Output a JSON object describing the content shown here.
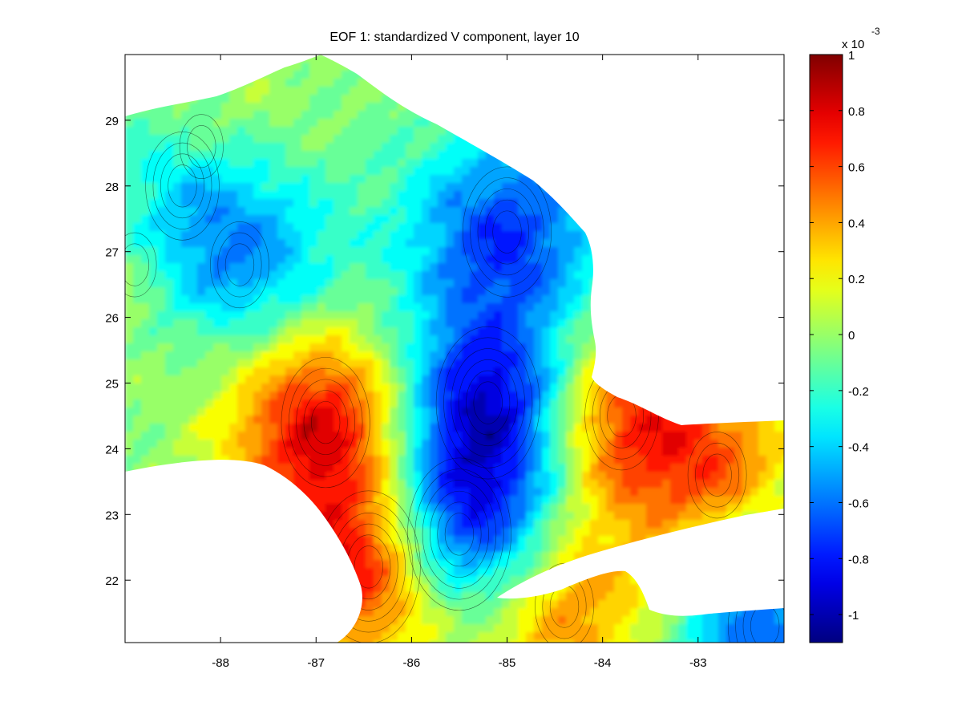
{
  "chart_data": {
    "type": "heatmap",
    "subtype": "filled-contour",
    "title": "EOF 1: standardized V component, layer 10",
    "xlabel": "",
    "ylabel": "",
    "xlim": [
      -89,
      -82.1
    ],
    "ylim": [
      21.05,
      30.0
    ],
    "x_ticks": [
      -88,
      -87,
      -86,
      -85,
      -84,
      -83
    ],
    "y_ticks": [
      22,
      23,
      24,
      25,
      26,
      27,
      28,
      29
    ],
    "colormap": "jet",
    "colorbar": {
      "range": [
        -1.1,
        1.0
      ],
      "ticks": [
        1,
        0.8,
        0.6,
        0.4,
        0.2,
        0,
        -0.2,
        -0.4,
        -0.6,
        -0.8,
        -1
      ],
      "ticks_text": [
        "1",
        "0.8",
        "0.6",
        "0.4",
        "0.2",
        "0",
        "-0.2",
        "-0.4",
        "-0.6",
        "-0.8",
        "-1"
      ],
      "exponent_base": "x 10",
      "exponent_power": "-3",
      "placement": "right"
    },
    "land_color": "#ffffff",
    "contour_line_color": "#000000",
    "features": [
      {
        "label": "positive-core-west",
        "lon": -86.9,
        "lat": 24.4,
        "value": 0.85
      },
      {
        "label": "positive-core-southwest",
        "lon": -86.45,
        "lat": 22.2,
        "value": 0.95
      },
      {
        "label": "negative-core-central",
        "lon": -85.2,
        "lat": 24.7,
        "value": -1.0
      },
      {
        "label": "negative-core-south",
        "lon": -85.5,
        "lat": 22.7,
        "value": -1.05
      },
      {
        "label": "positive-band-straits",
        "lon": -83.8,
        "lat": 24.5,
        "value": 0.65
      },
      {
        "label": "positive-band-straits-east",
        "lon": -82.8,
        "lat": 23.6,
        "value": 0.45
      },
      {
        "label": "negative-north-shelf",
        "lon": -85.0,
        "lat": 27.3,
        "value": -0.75
      },
      {
        "label": "negative-northwest",
        "lon": -88.4,
        "lat": 28.0,
        "value": -0.6
      },
      {
        "label": "negative-west-interior",
        "lon": -87.8,
        "lat": 26.8,
        "value": -0.55
      },
      {
        "label": "positive-northwest-patch",
        "lon": -88.2,
        "lat": 28.6,
        "value": 0.3
      },
      {
        "label": "positive-cuba-coast",
        "lon": -84.4,
        "lat": 21.6,
        "value": 0.55
      },
      {
        "label": "positive-west-coast",
        "lon": -88.9,
        "lat": 26.8,
        "value": 0.2
      },
      {
        "label": "negative-far-east-south",
        "lon": -82.3,
        "lat": 21.3,
        "value": -0.7
      }
    ],
    "base_value": -0.05
  }
}
